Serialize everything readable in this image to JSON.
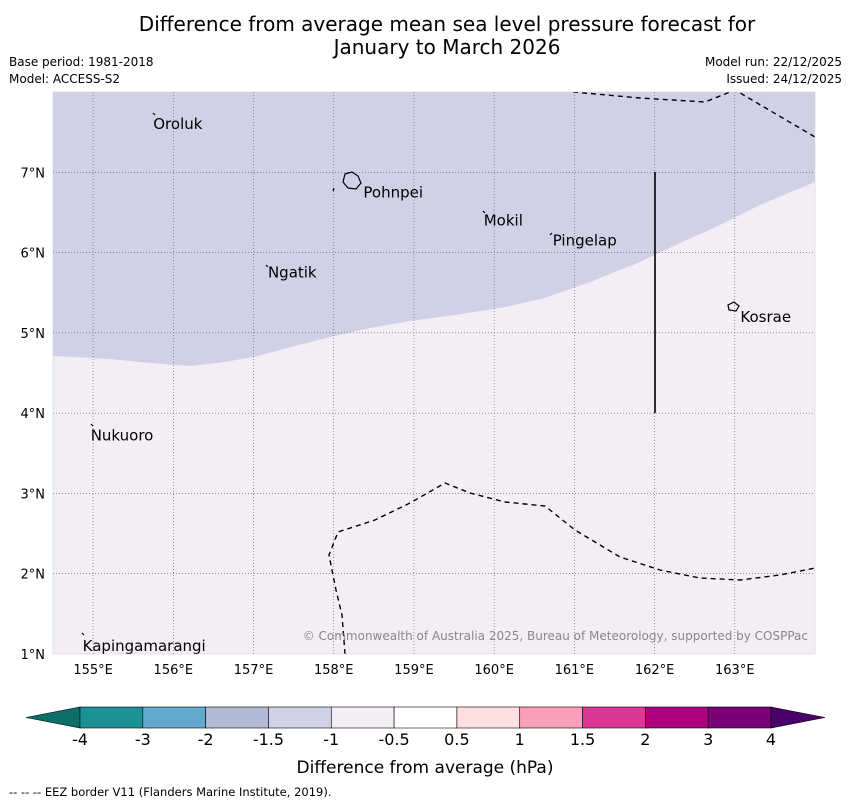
{
  "title_line1": "Difference from average mean sea level pressure forecast for",
  "title_line2": "January to March 2026",
  "meta": {
    "base_period": "Base period: 1981-2018",
    "model": "Model: ACCESS-S2",
    "model_run": "Model run: 22/12/2025",
    "issued": "Issued: 24/12/2025"
  },
  "map": {
    "lon_range": [
      154.5,
      164.0
    ],
    "lat_range": [
      1.0,
      8.0
    ],
    "lon_ticks": [
      "155°E",
      "156°E",
      "157°E",
      "158°E",
      "159°E",
      "160°E",
      "161°E",
      "162°E",
      "163°E"
    ],
    "lat_ticks": [
      "1°N",
      "2°N",
      "3°N",
      "4°N",
      "5°N",
      "6°N",
      "7°N"
    ],
    "places": [
      {
        "name": "Oroluk",
        "lon": 155.75,
        "lat": 7.6
      },
      {
        "name": "Pohnpei",
        "lon": 158.37,
        "lat": 6.75
      },
      {
        "name": "Mokil",
        "lon": 159.87,
        "lat": 6.4
      },
      {
        "name": "Pingelap",
        "lon": 160.73,
        "lat": 6.15
      },
      {
        "name": "Ngatik",
        "lon": 157.18,
        "lat": 5.75
      },
      {
        "name": "Kosrae",
        "lon": 163.07,
        "lat": 5.2
      },
      {
        "name": "Nukuoro",
        "lon": 154.97,
        "lat": 3.72
      },
      {
        "name": "Kapingamarangi",
        "lon": 154.87,
        "lat": 1.1
      }
    ],
    "copyright": "© Commonwealth of Australia 2025, Bureau of Meteorology, supported by COSPPac",
    "colors": {
      "minus_1_5_to_minus_1": "#d0d1e6",
      "minus_1_to_minus_0_5": "#f4edf6"
    }
  },
  "legend": {
    "ticks": [
      "-4",
      "-3",
      "-2",
      "-1.5",
      "-1",
      "-0.5",
      "0.5",
      "1",
      "1.5",
      "2",
      "3",
      "4"
    ],
    "colors": [
      "#0b6f67",
      "#1d9295",
      "#62a9cd",
      "#b0b9d6",
      "#d0d1e6",
      "#f4edf6",
      "#ffffff",
      "#fddfe0",
      "#f89fb9",
      "#dc3795",
      "#ae017e",
      "#7a0177",
      "#49006a"
    ],
    "label": "Difference from average (hPa)"
  },
  "footer": "--  --  -- EEZ border V11 (Flanders Marine Institute, 2019)."
}
